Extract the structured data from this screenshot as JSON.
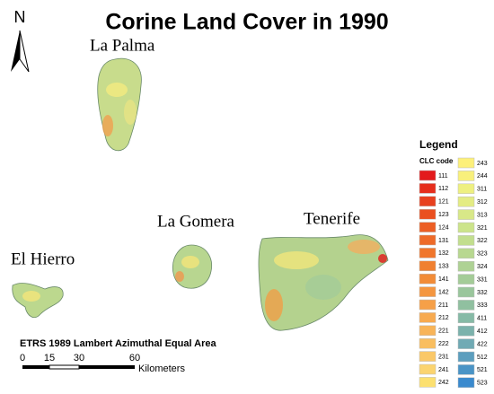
{
  "title": "Corine Land Cover in 1990",
  "north": "N",
  "islands": [
    "La Palma",
    "La Gomera",
    "Tenerife",
    "El Hierro"
  ],
  "projection": "ETRS 1989 Lambert Azimuthal Equal Area",
  "scale_bar": {
    "labels": [
      "0",
      "15",
      "30",
      "60"
    ],
    "unit": "Kilometers"
  },
  "legend": {
    "title": "Legend",
    "subtitle": "CLC code",
    "items": [
      {
        "code": "111",
        "color": "#e31a1c"
      },
      {
        "code": "112",
        "color": "#e62e1c"
      },
      {
        "code": "121",
        "color": "#e8401e"
      },
      {
        "code": "123",
        "color": "#ea5020"
      },
      {
        "code": "124",
        "color": "#ec5e24"
      },
      {
        "code": "131",
        "color": "#ee6a28"
      },
      {
        "code": "132",
        "color": "#f0762c"
      },
      {
        "code": "133",
        "color": "#f08030"
      },
      {
        "code": "141",
        "color": "#f28c38"
      },
      {
        "code": "142",
        "color": "#f49640"
      },
      {
        "code": "211",
        "color": "#f6a048"
      },
      {
        "code": "212",
        "color": "#f7aa50"
      },
      {
        "code": "221",
        "color": "#f8b458"
      },
      {
        "code": "222",
        "color": "#f9be60"
      },
      {
        "code": "231",
        "color": "#fac868"
      },
      {
        "code": "241",
        "color": "#fbd470"
      },
      {
        "code": "242",
        "color": "#fce070"
      },
      {
        "code": "243",
        "color": "#fdf07a"
      },
      {
        "code": "244",
        "color": "#f8f07c"
      },
      {
        "code": "311",
        "color": "#eef080"
      },
      {
        "code": "312",
        "color": "#e4ec84"
      },
      {
        "code": "313",
        "color": "#d8e888"
      },
      {
        "code": "321",
        "color": "#cce48a"
      },
      {
        "code": "322",
        "color": "#c2de8e"
      },
      {
        "code": "323",
        "color": "#b8d890"
      },
      {
        "code": "324",
        "color": "#aed294"
      },
      {
        "code": "331",
        "color": "#a4cc98"
      },
      {
        "code": "332",
        "color": "#9ac69c"
      },
      {
        "code": "333",
        "color": "#90c0a0"
      },
      {
        "code": "411",
        "color": "#86baa6"
      },
      {
        "code": "412",
        "color": "#7cb2ac"
      },
      {
        "code": "422",
        "color": "#70aab4"
      },
      {
        "code": "512",
        "color": "#5c9ebe"
      },
      {
        "code": "521",
        "color": "#4a94c6"
      },
      {
        "code": "523",
        "color": "#3a8ace"
      }
    ]
  }
}
